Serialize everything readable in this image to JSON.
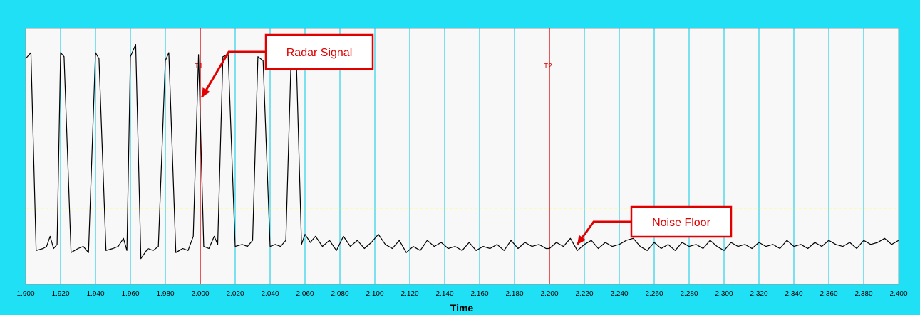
{
  "colors": {
    "frame": "#1fe0f5",
    "plot_background": "#f8f8f8",
    "grid": "#00c8e6",
    "trace": "#000000",
    "cursor": "#e00000",
    "threshold": "#ffff00",
    "callout": "#e00000"
  },
  "chart_data": {
    "type": "line",
    "xlabel": "Time",
    "ylabel": "",
    "xlim": [
      1.9,
      2.4
    ],
    "ylim": [
      0,
      1
    ],
    "xticks": [
      "1.900",
      "1.920",
      "1.940",
      "1.960",
      "1.980",
      "2.000",
      "2.020",
      "2.040",
      "2.060",
      "2.080",
      "2.100",
      "2.120",
      "2.140",
      "2.160",
      "2.180",
      "2.200",
      "2.220",
      "2.240",
      "2.260",
      "2.280",
      "2.300",
      "2.320",
      "2.340",
      "2.360",
      "2.380",
      "2.400"
    ],
    "grid": true,
    "threshold_level": 0.23,
    "cursors": [
      {
        "label": "T1",
        "x": 2.0
      },
      {
        "label": "T2",
        "x": 2.2
      }
    ],
    "annotations": [
      {
        "text": "Radar Signal",
        "target_x": 2.001,
        "target_y": 0.78
      },
      {
        "text": "Noise Floor",
        "target_x": 2.216,
        "target_y": 0.05
      }
    ],
    "series": [
      {
        "values": [
          [
            1.9,
            0.97
          ],
          [
            1.903,
            1.0
          ],
          [
            1.906,
            0.02
          ],
          [
            1.91,
            0.03
          ],
          [
            1.912,
            0.04
          ],
          [
            1.914,
            0.09
          ],
          [
            1.916,
            0.03
          ],
          [
            1.918,
            0.05
          ],
          [
            1.92,
            1.0
          ],
          [
            1.922,
            0.98
          ],
          [
            1.926,
            0.01
          ],
          [
            1.93,
            0.03
          ],
          [
            1.933,
            0.04
          ],
          [
            1.936,
            0.01
          ],
          [
            1.94,
            1.0
          ],
          [
            1.942,
            0.97
          ],
          [
            1.946,
            0.02
          ],
          [
            1.95,
            0.03
          ],
          [
            1.953,
            0.04
          ],
          [
            1.956,
            0.08
          ],
          [
            1.958,
            0.02
          ],
          [
            1.96,
            0.98
          ],
          [
            1.963,
            1.04
          ],
          [
            1.966,
            -0.02
          ],
          [
            1.97,
            0.03
          ],
          [
            1.973,
            0.02
          ],
          [
            1.976,
            0.04
          ],
          [
            1.98,
            0.96
          ],
          [
            1.982,
            1.0
          ],
          [
            1.986,
            0.01
          ],
          [
            1.99,
            0.03
          ],
          [
            1.993,
            0.02
          ],
          [
            1.996,
            0.09
          ],
          [
            1.999,
            0.99
          ],
          [
            2.002,
            0.04
          ],
          [
            2.005,
            0.03
          ],
          [
            2.008,
            0.09
          ],
          [
            2.01,
            0.05
          ],
          [
            2.013,
            0.98
          ],
          [
            2.016,
            0.99
          ],
          [
            2.02,
            0.04
          ],
          [
            2.024,
            0.05
          ],
          [
            2.027,
            0.04
          ],
          [
            2.03,
            0.07
          ],
          [
            2.033,
            0.98
          ],
          [
            2.036,
            0.96
          ],
          [
            2.04,
            0.04
          ],
          [
            2.043,
            0.05
          ],
          [
            2.046,
            0.04
          ],
          [
            2.049,
            0.07
          ],
          [
            2.052,
            0.96
          ],
          [
            2.055,
            0.97
          ],
          [
            2.058,
            0.05
          ],
          [
            2.06,
            0.1
          ],
          [
            2.063,
            0.06
          ],
          [
            2.066,
            0.09
          ],
          [
            2.07,
            0.04
          ],
          [
            2.074,
            0.07
          ],
          [
            2.078,
            0.02
          ],
          [
            2.082,
            0.09
          ],
          [
            2.086,
            0.04
          ],
          [
            2.09,
            0.07
          ],
          [
            2.094,
            0.03
          ],
          [
            2.098,
            0.06
          ],
          [
            2.102,
            0.1
          ],
          [
            2.106,
            0.05
          ],
          [
            2.11,
            0.03
          ],
          [
            2.114,
            0.07
          ],
          [
            2.118,
            0.01
          ],
          [
            2.122,
            0.04
          ],
          [
            2.126,
            0.02
          ],
          [
            2.13,
            0.07
          ],
          [
            2.134,
            0.04
          ],
          [
            2.138,
            0.06
          ],
          [
            2.142,
            0.03
          ],
          [
            2.146,
            0.04
          ],
          [
            2.15,
            0.02
          ],
          [
            2.154,
            0.06
          ],
          [
            2.158,
            0.02
          ],
          [
            2.162,
            0.04
          ],
          [
            2.166,
            0.03
          ],
          [
            2.17,
            0.05
          ],
          [
            2.174,
            0.02
          ],
          [
            2.178,
            0.07
          ],
          [
            2.182,
            0.03
          ],
          [
            2.186,
            0.06
          ],
          [
            2.19,
            0.04
          ],
          [
            2.194,
            0.05
          ],
          [
            2.198,
            0.03
          ],
          [
            2.2,
            0.03
          ],
          [
            2.204,
            0.06
          ],
          [
            2.208,
            0.04
          ],
          [
            2.212,
            0.08
          ],
          [
            2.216,
            0.02
          ],
          [
            2.22,
            0.05
          ],
          [
            2.224,
            0.07
          ],
          [
            2.228,
            0.03
          ],
          [
            2.232,
            0.06
          ],
          [
            2.236,
            0.04
          ],
          [
            2.24,
            0.05
          ],
          [
            2.244,
            0.07
          ],
          [
            2.248,
            0.08
          ],
          [
            2.252,
            0.04
          ],
          [
            2.256,
            0.02
          ],
          [
            2.26,
            0.06
          ],
          [
            2.264,
            0.03
          ],
          [
            2.268,
            0.05
          ],
          [
            2.272,
            0.02
          ],
          [
            2.276,
            0.06
          ],
          [
            2.28,
            0.04
          ],
          [
            2.284,
            0.05
          ],
          [
            2.288,
            0.03
          ],
          [
            2.292,
            0.07
          ],
          [
            2.296,
            0.04
          ],
          [
            2.3,
            0.02
          ],
          [
            2.304,
            0.06
          ],
          [
            2.308,
            0.04
          ],
          [
            2.312,
            0.05
          ],
          [
            2.316,
            0.03
          ],
          [
            2.32,
            0.06
          ],
          [
            2.324,
            0.04
          ],
          [
            2.328,
            0.05
          ],
          [
            2.332,
            0.03
          ],
          [
            2.336,
            0.07
          ],
          [
            2.34,
            0.04
          ],
          [
            2.344,
            0.05
          ],
          [
            2.348,
            0.03
          ],
          [
            2.352,
            0.06
          ],
          [
            2.356,
            0.04
          ],
          [
            2.36,
            0.07
          ],
          [
            2.364,
            0.05
          ],
          [
            2.368,
            0.04
          ],
          [
            2.372,
            0.06
          ],
          [
            2.376,
            0.03
          ],
          [
            2.38,
            0.07
          ],
          [
            2.384,
            0.05
          ],
          [
            2.388,
            0.06
          ],
          [
            2.392,
            0.08
          ],
          [
            2.396,
            0.05
          ],
          [
            2.4,
            0.07
          ]
        ]
      }
    ]
  }
}
